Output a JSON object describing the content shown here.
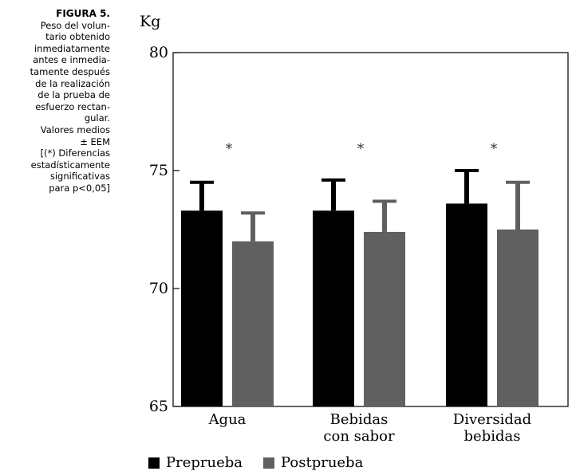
{
  "caption": {
    "label": "FIGURA 5.",
    "lines": [
      "Peso del volun-",
      "tario obtenido",
      "inmediatamente",
      "antes e inmedia-",
      "tamente después",
      "de la realización",
      "de la prueba de",
      "esfuerzo rectan-",
      "gular.",
      "Valores medios",
      "± EEM",
      "[(*) Diferencias",
      "estadísticamente",
      "significativas",
      "para p<0,05]"
    ]
  },
  "chart_data": {
    "type": "bar",
    "ylabel": "Kg",
    "ylim": [
      65,
      80
    ],
    "yticks": [
      "65",
      "70",
      "75",
      "80"
    ],
    "categories": [
      [
        "Agua"
      ],
      [
        "Bebidas",
        "con sabor"
      ],
      [
        "Diversidad",
        "bebidas"
      ]
    ],
    "series": [
      {
        "name": "Preprueba",
        "color": "#000000",
        "values": [
          73.3,
          73.3,
          73.6
        ],
        "errors": [
          1.2,
          1.3,
          1.4
        ]
      },
      {
        "name": "Postprueba",
        "color": "#606060",
        "values": [
          72.0,
          72.4,
          72.5
        ],
        "errors": [
          1.2,
          1.3,
          2.0
        ]
      }
    ],
    "annotations": [
      "*",
      "*",
      "*"
    ],
    "grid": false,
    "legend_position": "bottom"
  }
}
